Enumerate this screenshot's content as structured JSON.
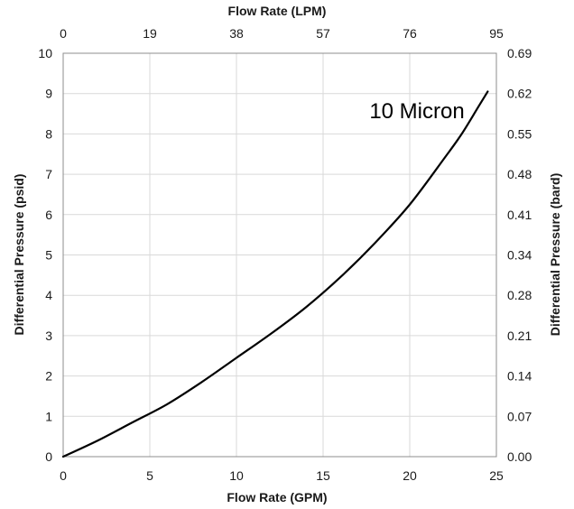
{
  "chart_data": {
    "type": "line",
    "title": "",
    "xlabel": "Flow Rate (GPM)",
    "x2label": "Flow Rate (LPM)",
    "ylabel": "Differential Pressure (psid)",
    "y2label": "Differential Pressure (bard)",
    "xlim": [
      0,
      25
    ],
    "ylim": [
      0,
      10
    ],
    "x_ticks": [
      "0",
      "5",
      "10",
      "15",
      "20",
      "25"
    ],
    "x2_ticks": [
      "0",
      "19",
      "38",
      "57",
      "76",
      "95"
    ],
    "y_ticks": [
      "0",
      "1",
      "2",
      "3",
      "4",
      "5",
      "6",
      "7",
      "8",
      "9",
      "10"
    ],
    "y2_ticks": [
      "0.00",
      "0.07",
      "0.14",
      "0.21",
      "0.28",
      "0.34",
      "0.41",
      "0.48",
      "0.55",
      "0.62",
      "0.69"
    ],
    "grid": true,
    "annotation": "10 Micron",
    "series": [
      {
        "color": "#000000",
        "x": [
          0,
          2,
          4,
          6,
          8,
          10,
          12,
          14,
          16,
          18,
          20,
          22,
          23,
          24,
          24.5
        ],
        "y": [
          0,
          0.4,
          0.85,
          1.3,
          1.85,
          2.45,
          3.05,
          3.7,
          4.45,
          5.3,
          6.25,
          7.4,
          8.0,
          8.7,
          9.05
        ]
      }
    ]
  }
}
